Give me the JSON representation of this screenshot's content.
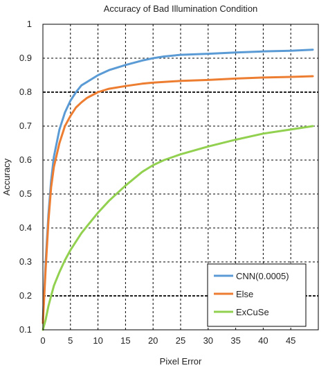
{
  "chart_data": {
    "type": "line",
    "title": "Accuracy of Bad Illumination Condition",
    "xlabel": "Pixel Error",
    "ylabel": "Accuracy",
    "xlim": [
      0,
      50
    ],
    "ylim": [
      0.1,
      1
    ],
    "xticks": [
      0,
      5,
      10,
      15,
      20,
      25,
      30,
      35,
      40,
      45
    ],
    "xtick_labels": [
      "0",
      "5",
      "10",
      "15",
      "20",
      "25",
      "30",
      "35",
      "40",
      "45"
    ],
    "yticks": [
      0.1,
      0.2,
      0.3,
      0.4,
      0.5,
      0.6,
      0.7,
      0.8,
      0.9,
      1
    ],
    "ytick_labels": [
      "0.1",
      "0.2",
      "0.3",
      "0.4",
      "0.5",
      "0.6",
      "0.7",
      "0.8",
      "0.9",
      "1"
    ],
    "grid": true,
    "emphasized_gridlines_y": [
      0.2,
      0.8
    ],
    "legend_position": "bottom-right",
    "series": [
      {
        "name": "CNN(0.0005)",
        "color": "#5b9bd5",
        "x": [
          0,
          0.5,
          1,
          1.5,
          2,
          3,
          4,
          5,
          6,
          7,
          8,
          10,
          12,
          15,
          18,
          20,
          22,
          25,
          30,
          35,
          40,
          45,
          49
        ],
        "y": [
          0.13,
          0.3,
          0.44,
          0.54,
          0.61,
          0.69,
          0.74,
          0.775,
          0.8,
          0.82,
          0.83,
          0.85,
          0.865,
          0.88,
          0.893,
          0.9,
          0.905,
          0.91,
          0.913,
          0.917,
          0.92,
          0.922,
          0.925
        ]
      },
      {
        "name": "Else",
        "color": "#ed7d31",
        "x": [
          0,
          0.5,
          1,
          1.5,
          2,
          3,
          4,
          5,
          6,
          7,
          8,
          10,
          12,
          15,
          18,
          20,
          22,
          25,
          30,
          35,
          40,
          45,
          49
        ],
        "y": [
          0.12,
          0.28,
          0.42,
          0.52,
          0.58,
          0.65,
          0.7,
          0.73,
          0.755,
          0.77,
          0.783,
          0.8,
          0.81,
          0.818,
          0.825,
          0.828,
          0.83,
          0.833,
          0.836,
          0.84,
          0.843,
          0.845,
          0.847
        ]
      },
      {
        "name": "ExCuSe",
        "color": "#92d050",
        "x": [
          0,
          0.5,
          1,
          1.5,
          2,
          3,
          4,
          5,
          6,
          7,
          8,
          10,
          12,
          15,
          18,
          20,
          22,
          25,
          30,
          35,
          40,
          45,
          49
        ],
        "y": [
          0.1,
          0.13,
          0.17,
          0.2,
          0.23,
          0.27,
          0.305,
          0.335,
          0.36,
          0.385,
          0.405,
          0.445,
          0.48,
          0.525,
          0.565,
          0.585,
          0.6,
          0.617,
          0.64,
          0.66,
          0.678,
          0.69,
          0.7
        ]
      }
    ]
  }
}
